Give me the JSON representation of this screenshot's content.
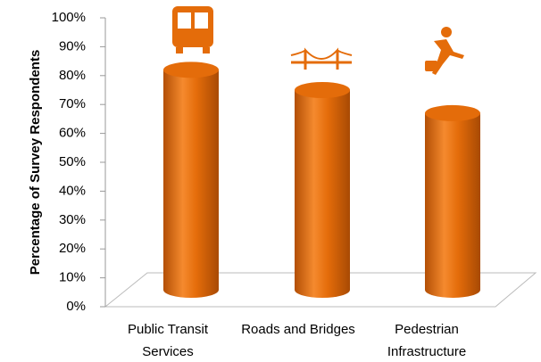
{
  "chart_data": {
    "type": "cylinder",
    "categories": [
      "Public Transit Services",
      "Roads and Bridges",
      "Pedestrian Infrastructure"
    ],
    "values": [
      82,
      75,
      67
    ],
    "color": "#e46c0a",
    "y_label": "Percentage of Survey Respondents",
    "ylim": [
      0,
      100
    ],
    "yticks": [
      {
        "value": 0,
        "label": "0%"
      },
      {
        "value": 10,
        "label": "10%"
      },
      {
        "value": 20,
        "label": "20%"
      },
      {
        "value": 30,
        "label": "30%"
      },
      {
        "value": 40,
        "label": "40%"
      },
      {
        "value": 50,
        "label": "50%"
      },
      {
        "value": 60,
        "label": "60%"
      },
      {
        "value": 70,
        "label": "70%"
      },
      {
        "value": 80,
        "label": "80%"
      },
      {
        "value": 90,
        "label": "90%"
      },
      {
        "value": 100,
        "label": "100%"
      }
    ]
  }
}
